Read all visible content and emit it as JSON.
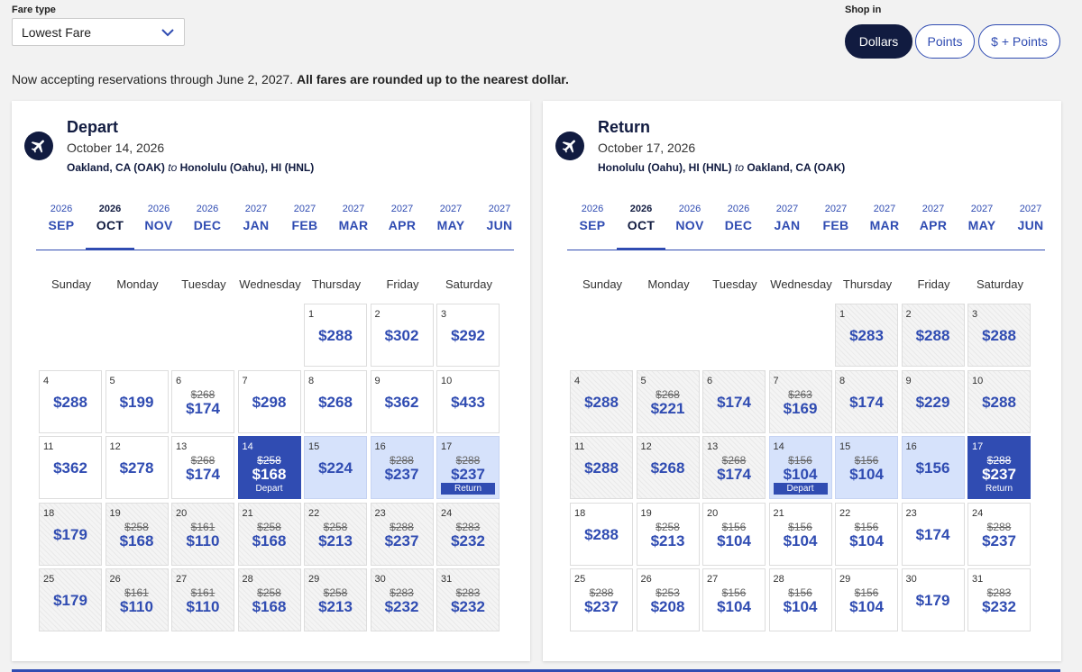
{
  "fare_type": {
    "label": "Fare type",
    "value": "Lowest Fare"
  },
  "shop_in": {
    "label": "Shop in",
    "options": [
      "Dollars",
      "Points",
      "$ + Points"
    ],
    "selected": "Dollars"
  },
  "notice": {
    "text": "Now accepting reservations through June 2, 2027.",
    "bold": "All fares are rounded up to the nearest dollar."
  },
  "colors": {
    "navy": "#111b40",
    "accent": "#304cb2",
    "range": "#d6e2fb"
  },
  "weekdays": [
    "Sunday",
    "Monday",
    "Tuesday",
    "Wednesday",
    "Thursday",
    "Friday",
    "Saturday"
  ],
  "months": [
    {
      "year": "2026",
      "month": "SEP"
    },
    {
      "year": "2026",
      "month": "OCT"
    },
    {
      "year": "2026",
      "month": "NOV"
    },
    {
      "year": "2026",
      "month": "DEC"
    },
    {
      "year": "2027",
      "month": "JAN"
    },
    {
      "year": "2027",
      "month": "FEB"
    },
    {
      "year": "2027",
      "month": "MAR"
    },
    {
      "year": "2027",
      "month": "APR"
    },
    {
      "year": "2027",
      "month": "MAY"
    },
    {
      "year": "2027",
      "month": "JUN"
    }
  ],
  "depart": {
    "title": "Depart",
    "date": "October 14, 2026",
    "origin": "Oakland, CA (OAK)",
    "to": "to",
    "destination": "Honolulu (Oahu), HI (HNL)",
    "selected_month": "OCT",
    "first_weekday": 4,
    "days": [
      {
        "d": "1",
        "p": "$288",
        "o": "",
        "s": "plain",
        "t": ""
      },
      {
        "d": "2",
        "p": "$302",
        "o": "",
        "s": "plain",
        "t": ""
      },
      {
        "d": "3",
        "p": "$292",
        "o": "",
        "s": "plain",
        "t": ""
      },
      {
        "d": "4",
        "p": "$288",
        "o": "",
        "s": "plain",
        "t": ""
      },
      {
        "d": "5",
        "p": "$199",
        "o": "",
        "s": "plain",
        "t": ""
      },
      {
        "d": "6",
        "p": "$174",
        "o": "$268",
        "s": "plain",
        "t": ""
      },
      {
        "d": "7",
        "p": "$298",
        "o": "",
        "s": "plain",
        "t": ""
      },
      {
        "d": "8",
        "p": "$268",
        "o": "",
        "s": "plain",
        "t": ""
      },
      {
        "d": "9",
        "p": "$362",
        "o": "",
        "s": "plain",
        "t": ""
      },
      {
        "d": "10",
        "p": "$433",
        "o": "",
        "s": "plain",
        "t": ""
      },
      {
        "d": "11",
        "p": "$362",
        "o": "",
        "s": "plain",
        "t": ""
      },
      {
        "d": "12",
        "p": "$278",
        "o": "",
        "s": "plain",
        "t": ""
      },
      {
        "d": "13",
        "p": "$174",
        "o": "$268",
        "s": "plain",
        "t": ""
      },
      {
        "d": "14",
        "p": "$168",
        "o": "$258",
        "s": "sel",
        "t": "Depart"
      },
      {
        "d": "15",
        "p": "$224",
        "o": "",
        "s": "range",
        "t": ""
      },
      {
        "d": "16",
        "p": "$237",
        "o": "$288",
        "s": "range",
        "t": ""
      },
      {
        "d": "17",
        "p": "$237",
        "o": "$288",
        "s": "range",
        "t": "Return"
      },
      {
        "d": "18",
        "p": "$179",
        "o": "",
        "s": "hatch",
        "t": ""
      },
      {
        "d": "19",
        "p": "$168",
        "o": "$258",
        "s": "hatch",
        "t": ""
      },
      {
        "d": "20",
        "p": "$110",
        "o": "$161",
        "s": "hatch",
        "t": ""
      },
      {
        "d": "21",
        "p": "$168",
        "o": "$258",
        "s": "hatch",
        "t": ""
      },
      {
        "d": "22",
        "p": "$213",
        "o": "$258",
        "s": "hatch",
        "t": ""
      },
      {
        "d": "23",
        "p": "$237",
        "o": "$288",
        "s": "hatch",
        "t": ""
      },
      {
        "d": "24",
        "p": "$232",
        "o": "$283",
        "s": "hatch",
        "t": ""
      },
      {
        "d": "25",
        "p": "$179",
        "o": "",
        "s": "hatch",
        "t": ""
      },
      {
        "d": "26",
        "p": "$110",
        "o": "$161",
        "s": "hatch",
        "t": ""
      },
      {
        "d": "27",
        "p": "$110",
        "o": "$161",
        "s": "hatch",
        "t": ""
      },
      {
        "d": "28",
        "p": "$168",
        "o": "$258",
        "s": "hatch",
        "t": ""
      },
      {
        "d": "29",
        "p": "$213",
        "o": "$258",
        "s": "hatch",
        "t": ""
      },
      {
        "d": "30",
        "p": "$232",
        "o": "$283",
        "s": "hatch",
        "t": ""
      },
      {
        "d": "31",
        "p": "$232",
        "o": "$283",
        "s": "hatch",
        "t": ""
      }
    ]
  },
  "return": {
    "title": "Return",
    "date": "October 17, 2026",
    "origin": "Honolulu (Oahu), HI (HNL)",
    "to": "to",
    "destination": "Oakland, CA (OAK)",
    "selected_month": "OCT",
    "first_weekday": 4,
    "days": [
      {
        "d": "1",
        "p": "$283",
        "o": "",
        "s": "hatch",
        "t": ""
      },
      {
        "d": "2",
        "p": "$288",
        "o": "",
        "s": "hatch",
        "t": ""
      },
      {
        "d": "3",
        "p": "$288",
        "o": "",
        "s": "hatch",
        "t": ""
      },
      {
        "d": "4",
        "p": "$288",
        "o": "",
        "s": "hatch",
        "t": ""
      },
      {
        "d": "5",
        "p": "$221",
        "o": "$268",
        "s": "hatch",
        "t": ""
      },
      {
        "d": "6",
        "p": "$174",
        "o": "",
        "s": "hatch",
        "t": ""
      },
      {
        "d": "7",
        "p": "$169",
        "o": "$263",
        "s": "hatch",
        "t": ""
      },
      {
        "d": "8",
        "p": "$174",
        "o": "",
        "s": "hatch",
        "t": ""
      },
      {
        "d": "9",
        "p": "$229",
        "o": "",
        "s": "hatch",
        "t": ""
      },
      {
        "d": "10",
        "p": "$288",
        "o": "",
        "s": "hatch",
        "t": ""
      },
      {
        "d": "11",
        "p": "$288",
        "o": "",
        "s": "hatch",
        "t": ""
      },
      {
        "d": "12",
        "p": "$268",
        "o": "",
        "s": "hatch",
        "t": ""
      },
      {
        "d": "13",
        "p": "$174",
        "o": "$268",
        "s": "hatch",
        "t": ""
      },
      {
        "d": "14",
        "p": "$104",
        "o": "$156",
        "s": "range",
        "t": "Depart"
      },
      {
        "d": "15",
        "p": "$104",
        "o": "$156",
        "s": "range",
        "t": ""
      },
      {
        "d": "16",
        "p": "$156",
        "o": "",
        "s": "range",
        "t": ""
      },
      {
        "d": "17",
        "p": "$237",
        "o": "$288",
        "s": "sel",
        "t": "Return"
      },
      {
        "d": "18",
        "p": "$288",
        "o": "",
        "s": "plain",
        "t": ""
      },
      {
        "d": "19",
        "p": "$213",
        "o": "$258",
        "s": "plain",
        "t": ""
      },
      {
        "d": "20",
        "p": "$104",
        "o": "$156",
        "s": "plain",
        "t": ""
      },
      {
        "d": "21",
        "p": "$104",
        "o": "$156",
        "s": "plain",
        "t": ""
      },
      {
        "d": "22",
        "p": "$104",
        "o": "$156",
        "s": "plain",
        "t": ""
      },
      {
        "d": "23",
        "p": "$174",
        "o": "",
        "s": "plain",
        "t": ""
      },
      {
        "d": "24",
        "p": "$237",
        "o": "$288",
        "s": "plain",
        "t": ""
      },
      {
        "d": "25",
        "p": "$237",
        "o": "$288",
        "s": "plain",
        "t": ""
      },
      {
        "d": "26",
        "p": "$208",
        "o": "$253",
        "s": "plain",
        "t": ""
      },
      {
        "d": "27",
        "p": "$104",
        "o": "$156",
        "s": "plain",
        "t": ""
      },
      {
        "d": "28",
        "p": "$104",
        "o": "$156",
        "s": "plain",
        "t": ""
      },
      {
        "d": "29",
        "p": "$104",
        "o": "$156",
        "s": "plain",
        "t": ""
      },
      {
        "d": "30",
        "p": "$179",
        "o": "",
        "s": "plain",
        "t": ""
      },
      {
        "d": "31",
        "p": "$232",
        "o": "$283",
        "s": "plain",
        "t": ""
      }
    ]
  }
}
